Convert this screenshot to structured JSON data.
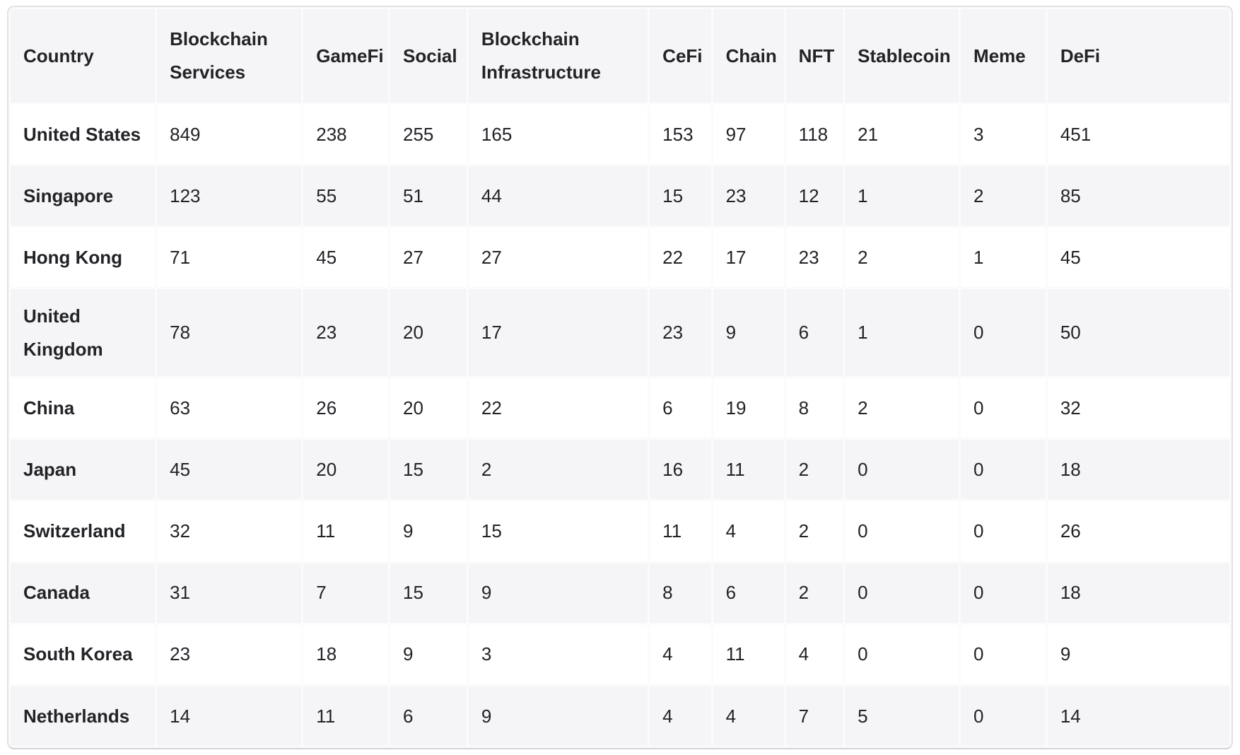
{
  "colors": {
    "row_bg": "#ffffff",
    "row_alt_bg": "#f5f5f7",
    "text": "#222327",
    "outer_border": "#e2e2e6"
  },
  "chart_data": {
    "type": "table",
    "columns": [
      "Country",
      "Blockchain Services",
      "GameFi",
      "Social",
      "Blockchain Infrastructure",
      "CeFi",
      "Chain",
      "NFT",
      "Stablecoin",
      "Meme",
      "DeFi"
    ],
    "rows": [
      [
        "United States",
        849,
        238,
        255,
        165,
        153,
        97,
        118,
        21,
        3,
        451
      ],
      [
        "Singapore",
        123,
        55,
        51,
        44,
        15,
        23,
        12,
        1,
        2,
        85
      ],
      [
        "Hong Kong",
        71,
        45,
        27,
        27,
        22,
        17,
        23,
        2,
        1,
        45
      ],
      [
        "United Kingdom",
        78,
        23,
        20,
        17,
        23,
        9,
        6,
        1,
        0,
        50
      ],
      [
        "China",
        63,
        26,
        20,
        22,
        6,
        19,
        8,
        2,
        0,
        32
      ],
      [
        "Japan",
        45,
        20,
        15,
        2,
        16,
        11,
        2,
        0,
        0,
        18
      ],
      [
        "Switzerland",
        32,
        11,
        9,
        15,
        11,
        4,
        2,
        0,
        0,
        26
      ],
      [
        "Canada",
        31,
        7,
        15,
        9,
        8,
        6,
        2,
        0,
        0,
        18
      ],
      [
        "South Korea",
        23,
        18,
        9,
        3,
        4,
        11,
        4,
        0,
        0,
        9
      ],
      [
        "Netherlands",
        14,
        11,
        6,
        9,
        4,
        4,
        7,
        5,
        0,
        14
      ]
    ]
  }
}
